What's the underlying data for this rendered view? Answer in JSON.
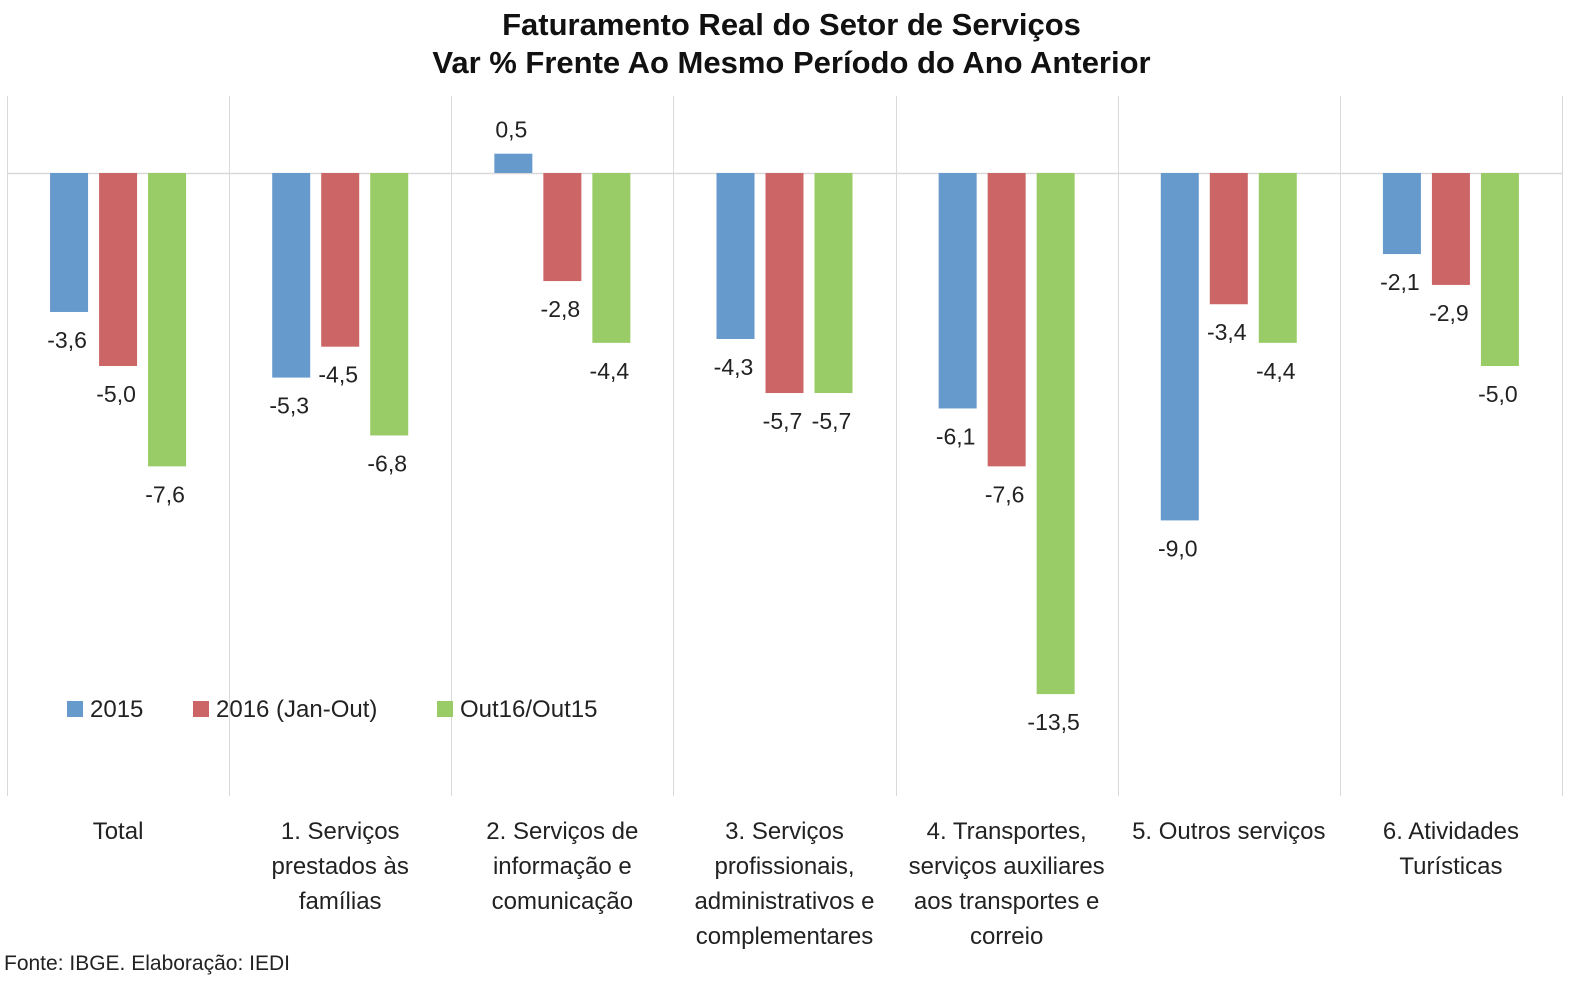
{
  "chart_data": {
    "type": "bar",
    "title_lines": [
      "Faturamento Real do Setor de Serviços",
      "Var % Frente Ao Mesmo Período do Ano Anterior"
    ],
    "categories": [
      [
        "Total"
      ],
      [
        "1. Serviços",
        "prestados às",
        "famílias"
      ],
      [
        "2. Serviços de",
        "informação e",
        "comunicação"
      ],
      [
        "3. Serviços",
        "profissionais,",
        "administrativos e",
        "complementares"
      ],
      [
        "4. Transportes,",
        "serviços auxiliares",
        "aos transportes e",
        "correio"
      ],
      [
        "5. Outros serviços"
      ],
      [
        "6. Atividades",
        "Turísticas"
      ]
    ],
    "series": [
      {
        "name": "2015",
        "color": "#6699CC",
        "values": [
          -3.6,
          -5.3,
          0.5,
          -4.3,
          -6.1,
          -9.0,
          -2.1
        ],
        "labels": [
          "-3,6",
          "-5,3",
          "0,5",
          "-4,3",
          "-6,1",
          "-9,0",
          "-2,1"
        ]
      },
      {
        "name": "2016 (Jan-Out)",
        "color": "#CC6666",
        "values": [
          -5.0,
          -4.5,
          -2.8,
          -5.7,
          -7.6,
          -3.4,
          -2.9
        ],
        "labels": [
          "-5,0",
          "-4,5",
          "-2,8",
          "-5,7",
          "-7,6",
          "-3,4",
          "-2,9"
        ]
      },
      {
        "name": "Out16/Out15",
        "color": "#99CC66",
        "values": [
          -7.6,
          -6.8,
          -4.4,
          -5.7,
          -13.5,
          -4.4,
          -5.0
        ],
        "labels": [
          "-7,6",
          "-6,8",
          "-4,4",
          "-5,7",
          "-13,5",
          "-4,4",
          "-5,0"
        ]
      }
    ],
    "ylim": [
      -16,
      2
    ],
    "grid": "vertical category separators",
    "legend_position": "lower-left"
  },
  "source_note": "Fonte: IBGE. Elaboração: IEDI"
}
